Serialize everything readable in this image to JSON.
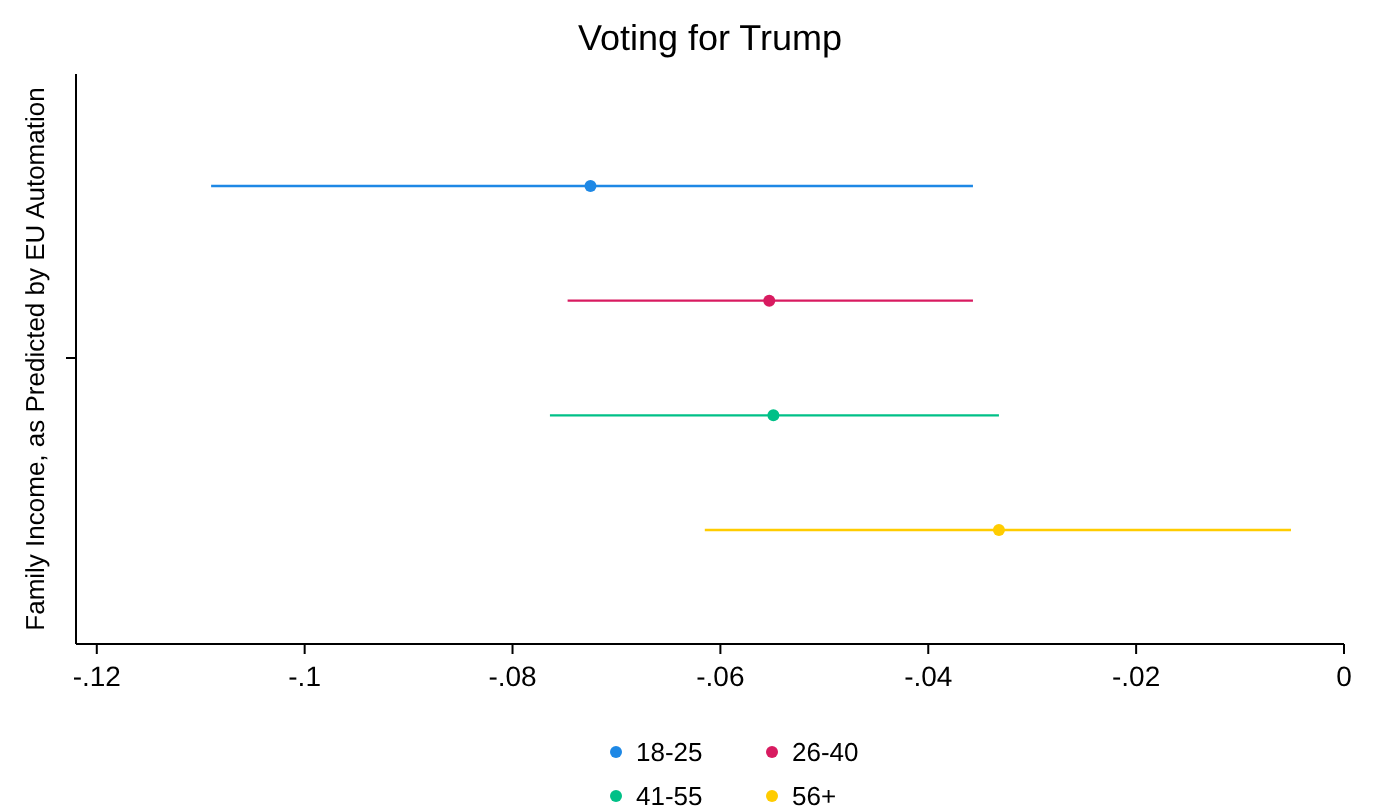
{
  "chart_data": {
    "type": "scatter",
    "orientation": "horizontal",
    "title": "Voting for Trump",
    "ylabel": "Family Income, as Predicted by EU Automation",
    "categories": [
      null,
      null,
      null,
      null
    ],
    "xlim": [
      -0.122,
      0
    ],
    "xticks": [
      {
        "value": -0.12,
        "label": "-.12"
      },
      {
        "value": -0.1,
        "label": "-.1"
      },
      {
        "value": -0.08,
        "label": "-.08"
      },
      {
        "value": -0.06,
        "label": "-.06"
      },
      {
        "value": -0.04,
        "label": "-.04"
      },
      {
        "value": -0.02,
        "label": "-.02"
      },
      {
        "value": 0,
        "label": "0"
      }
    ],
    "grid": false,
    "legend": "bottom",
    "marker": "circle",
    "series": [
      {
        "name": "18-25",
        "color": "#1e88e5",
        "values": [
          -0.0725,
          null,
          null,
          null
        ],
        "errors": [
          [
            -0.109,
            -0.0357
          ],
          null,
          null,
          null
        ]
      },
      {
        "name": "26-40",
        "color": "#d81b60",
        "values": [
          null,
          -0.0553,
          null,
          null
        ],
        "errors": [
          null,
          [
            -0.0747,
            -0.0357
          ],
          null,
          null
        ]
      },
      {
        "name": "41-55",
        "color": "#00c087",
        "values": [
          null,
          null,
          -0.0549,
          null
        ],
        "errors": [
          null,
          null,
          [
            -0.0764,
            -0.0332
          ],
          null
        ]
      },
      {
        "name": "56+",
        "color": "#ffcc00",
        "values": [
          null,
          null,
          null,
          -0.0332
        ],
        "errors": [
          null,
          null,
          null,
          [
            -0.0615,
            -0.0051
          ]
        ]
      }
    ]
  }
}
